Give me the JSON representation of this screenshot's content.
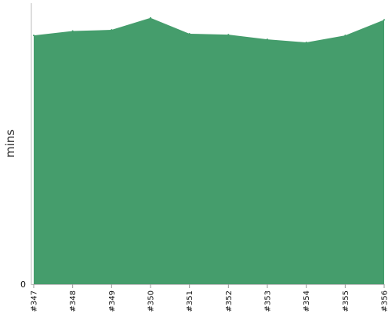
{
  "chart_data": {
    "type": "area",
    "title": "",
    "xlabel": "",
    "ylabel": "mins",
    "categories": [
      "#347",
      "#348",
      "#349",
      "#350",
      "#351",
      "#352",
      "#353",
      "#354",
      "#355",
      "#356"
    ],
    "series": [
      {
        "values": [
          89,
          90.6,
          91,
          95.3,
          89.6,
          89.3,
          87.6,
          86.5,
          89,
          94.6
        ]
      }
    ],
    "ylim": [
      0,
      100
    ],
    "y_ticks": [
      0
    ],
    "y_tick_labels": [
      "0"
    ],
    "grid": false,
    "legend": "none",
    "colors": {
      "fill": "#459d6c",
      "axis": "#bdbdbd",
      "tick": "#999999"
    }
  }
}
